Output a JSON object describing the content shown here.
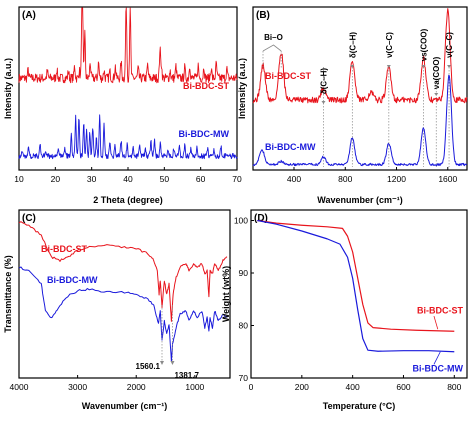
{
  "colors": {
    "st": "#e8141c",
    "mw": "#1a1adb",
    "axis": "#000000",
    "marker": "#8a8a8a"
  },
  "chart_data": [
    {
      "panel_label": "(A)",
      "type": "line",
      "xlabel": "2 Theta (degree)",
      "ylabel": "Intensity (a.u.)",
      "xlim": [
        10,
        70
      ],
      "xticks": [
        10,
        20,
        30,
        40,
        50,
        60,
        70
      ],
      "yticks_shown": false,
      "series": [
        {
          "name": "Bi-BDC-ST",
          "color": "st",
          "baseline": 0.62,
          "noise": 0.035,
          "peaks": [
            [
              12.5,
              0.06
            ],
            [
              17.8,
              0.05
            ],
            [
              20.4,
              0.07
            ],
            [
              23.6,
              0.05
            ],
            [
              25.3,
              0.09
            ],
            [
              26.6,
              0.06
            ],
            [
              27.4,
              1.05
            ],
            [
              28.1,
              0.35
            ],
            [
              29.6,
              0.12
            ],
            [
              31.9,
              0.12
            ],
            [
              33.4,
              0.06
            ],
            [
              35.0,
              0.05
            ],
            [
              36.5,
              0.09
            ],
            [
              38.1,
              0.12
            ],
            [
              39.5,
              0.62
            ],
            [
              40.6,
              0.54
            ],
            [
              42.8,
              0.07
            ],
            [
              45.4,
              0.1
            ],
            [
              48.8,
              0.22
            ],
            [
              49.2,
              0.1
            ],
            [
              51.6,
              0.06
            ],
            [
              53.2,
              0.09
            ],
            [
              55.6,
              0.08
            ],
            [
              57.0,
              0.1
            ],
            [
              59.3,
              0.1
            ],
            [
              60.9,
              0.09
            ],
            [
              62.9,
              0.08
            ],
            [
              64.3,
              0.11
            ],
            [
              67.2,
              0.07
            ]
          ]
        },
        {
          "name": "Bi-BDC-MW",
          "color": "mw",
          "baseline": 0.03,
          "noise": 0.02,
          "peaks": [
            [
              10.9,
              0.03
            ],
            [
              12.6,
              0.06
            ],
            [
              15.8,
              0.09
            ],
            [
              17.3,
              0.05
            ],
            [
              20.9,
              0.06
            ],
            [
              22.6,
              0.07
            ],
            [
              24.4,
              0.16
            ],
            [
              25.6,
              0.3
            ],
            [
              26.5,
              0.28
            ],
            [
              27.8,
              0.26
            ],
            [
              28.6,
              0.2
            ],
            [
              29.5,
              0.18
            ],
            [
              30.3,
              0.22
            ],
            [
              31.3,
              0.14
            ],
            [
              32.2,
              0.32
            ],
            [
              33.4,
              0.26
            ],
            [
              35.0,
              0.12
            ],
            [
              36.4,
              0.08
            ],
            [
              38.1,
              0.12
            ],
            [
              39.8,
              0.1
            ],
            [
              41.4,
              0.06
            ],
            [
              43.2,
              0.08
            ],
            [
              44.8,
              0.06
            ],
            [
              46.3,
              0.12
            ],
            [
              47.3,
              0.13
            ],
            [
              48.9,
              0.1
            ],
            [
              51.0,
              0.05
            ],
            [
              52.6,
              0.06
            ],
            [
              54.1,
              0.07
            ],
            [
              55.6,
              0.08
            ],
            [
              57.3,
              0.06
            ],
            [
              59.0,
              0.07
            ],
            [
              61.9,
              0.06
            ],
            [
              63.7,
              0.05
            ],
            [
              65.6,
              0.07
            ]
          ]
        }
      ],
      "series_labels": {
        "st": "Bi-BDC-ST",
        "mw": "Bi-BDC-MW"
      }
    },
    {
      "panel_label": "(B)",
      "type": "line",
      "xlabel": "Wavenumber (cm⁻¹)",
      "ylabel": "Intensity (a.u.)",
      "xlim": [
        80,
        1750
      ],
      "xticks": [
        400,
        800,
        1200,
        1600
      ],
      "yticks_shown": false,
      "series": [
        {
          "name": "Bi-BDC-ST",
          "color": "st",
          "baseline": 0.44,
          "noise": 0.02,
          "peaks": [
            [
              158,
              0.23
            ],
            [
              300,
              0.32
            ],
            [
              630,
              0.08
            ],
            [
              855,
              0.26
            ],
            [
              1000,
              0.05
            ],
            [
              1140,
              0.22
            ],
            [
              1410,
              0.28
            ],
            [
              1600,
              0.6
            ]
          ]
        },
        {
          "name": "Bi-BDC-MW",
          "color": "mw",
          "baseline": 0.01,
          "noise": 0.008,
          "peaks": [
            [
              150,
              0.1
            ],
            [
              300,
              0.02
            ],
            [
              630,
              0.05
            ],
            [
              855,
              0.18
            ],
            [
              1140,
              0.14
            ],
            [
              1410,
              0.24
            ],
            [
              1610,
              0.6
            ]
          ]
        }
      ],
      "annotations": [
        {
          "x": 240,
          "text": "Bi–O",
          "bracket": [
            158,
            300
          ]
        },
        {
          "x": 630,
          "text": "δ(C–H)"
        },
        {
          "x": 855,
          "text": "δ(C–H)"
        },
        {
          "x": 1140,
          "text": "ν(C–C)"
        },
        {
          "x": 1410,
          "text": "νs(COO)"
        },
        {
          "x": 1510,
          "text": "νa(COO)"
        },
        {
          "x": 1610,
          "text": "ν(C–C)"
        }
      ],
      "series_labels": {
        "st": "Bi-BDC-ST",
        "mw": "Bi-BDC-MW"
      }
    },
    {
      "panel_label": "(C)",
      "type": "line",
      "xlabel": "Wavenumber (cm⁻¹)",
      "ylabel": "Transmittance (%)",
      "xlim": [
        4000,
        400
      ],
      "xticks": [
        4000,
        3000,
        2000,
        1000
      ],
      "yticks_shown": false,
      "series": [
        {
          "name": "Bi-BDC-ST",
          "color": "st",
          "points": [
            [
              4000,
              0.93
            ],
            [
              3800,
              0.9
            ],
            [
              3620,
              0.85
            ],
            [
              3450,
              0.72
            ],
            [
              3300,
              0.7
            ],
            [
              3150,
              0.72
            ],
            [
              3000,
              0.76
            ],
            [
              2800,
              0.78
            ],
            [
              2500,
              0.79
            ],
            [
              2200,
              0.78
            ],
            [
              2000,
              0.77
            ],
            [
              1800,
              0.74
            ],
            [
              1700,
              0.7
            ],
            [
              1640,
              0.64
            ],
            [
              1610,
              0.5
            ],
            [
              1590,
              0.58
            ],
            [
              1560,
              0.42
            ],
            [
              1520,
              0.58
            ],
            [
              1480,
              0.5
            ],
            [
              1440,
              0.56
            ],
            [
              1400,
              0.34
            ],
            [
              1370,
              0.5
            ],
            [
              1320,
              0.6
            ],
            [
              1250,
              0.66
            ],
            [
              1150,
              0.68
            ],
            [
              1100,
              0.64
            ],
            [
              1020,
              0.68
            ],
            [
              960,
              0.66
            ],
            [
              880,
              0.68
            ],
            [
              830,
              0.62
            ],
            [
              790,
              0.64
            ],
            [
              760,
              0.48
            ],
            [
              740,
              0.64
            ],
            [
              700,
              0.62
            ],
            [
              660,
              0.68
            ],
            [
              600,
              0.64
            ],
            [
              520,
              0.7
            ],
            [
              450,
              0.72
            ]
          ]
        },
        {
          "name": "Bi-BDC-MW",
          "color": "mw",
          "points": [
            [
              4000,
              0.66
            ],
            [
              3800,
              0.63
            ],
            [
              3620,
              0.56
            ],
            [
              3550,
              0.4
            ],
            [
              3450,
              0.36
            ],
            [
              3350,
              0.4
            ],
            [
              3200,
              0.48
            ],
            [
              3000,
              0.52
            ],
            [
              2800,
              0.53
            ],
            [
              2500,
              0.51
            ],
            [
              2200,
              0.51
            ],
            [
              2000,
              0.5
            ],
            [
              1800,
              0.47
            ],
            [
              1700,
              0.43
            ],
            [
              1620,
              0.32
            ],
            [
              1590,
              0.4
            ],
            [
              1560,
              0.22
            ],
            [
              1520,
              0.34
            ],
            [
              1480,
              0.26
            ],
            [
              1440,
              0.32
            ],
            [
              1400,
              0.1
            ],
            [
              1380,
              0.2
            ],
            [
              1320,
              0.3
            ],
            [
              1250,
              0.38
            ],
            [
              1150,
              0.4
            ],
            [
              1100,
              0.34
            ],
            [
              1020,
              0.4
            ],
            [
              960,
              0.36
            ],
            [
              880,
              0.4
            ],
            [
              830,
              0.3
            ],
            [
              790,
              0.36
            ],
            [
              760,
              0.28
            ],
            [
              740,
              0.36
            ],
            [
              700,
              0.3
            ],
            [
              660,
              0.4
            ],
            [
              600,
              0.34
            ],
            [
              520,
              0.38
            ],
            [
              450,
              0.36
            ]
          ]
        }
      ],
      "annotations": [
        {
          "x": 1560.1,
          "text": "1560.1"
        },
        {
          "x": 1381.7,
          "text": "1381.7"
        }
      ],
      "series_labels": {
        "st": "Bi-BDC-ST",
        "mw": "Bi-BDC-MW"
      }
    },
    {
      "panel_label": "(D)",
      "type": "line",
      "xlabel": "Temperature (°C)",
      "ylabel": "Weight (wt%)",
      "xlim": [
        0,
        850
      ],
      "ylim": [
        70,
        102
      ],
      "xticks": [
        0,
        200,
        400,
        600,
        800
      ],
      "yticks": [
        70,
        80,
        90,
        100
      ],
      "series": [
        {
          "name": "Bi-BDC-ST",
          "color": "st",
          "points": [
            [
              25,
              100
            ],
            [
              100,
              99.5
            ],
            [
              200,
              99.1
            ],
            [
              300,
              98.8
            ],
            [
              360,
              98.5
            ],
            [
              380,
              97
            ],
            [
              400,
              94
            ],
            [
              420,
              89
            ],
            [
              440,
              84
            ],
            [
              460,
              80.5
            ],
            [
              480,
              79.6
            ],
            [
              550,
              79.3
            ],
            [
              650,
              79.1
            ],
            [
              800,
              78.9
            ]
          ]
        },
        {
          "name": "Bi-BDC-MW",
          "color": "mw",
          "points": [
            [
              25,
              100
            ],
            [
              100,
              99.3
            ],
            [
              200,
              98
            ],
            [
              300,
              96.5
            ],
            [
              350,
              95.5
            ],
            [
              380,
              93
            ],
            [
              400,
              89
            ],
            [
              420,
              83
            ],
            [
              440,
              77.5
            ],
            [
              460,
              75.3
            ],
            [
              500,
              75.1
            ],
            [
              600,
              75.2
            ],
            [
              700,
              75.2
            ],
            [
              800,
              75
            ]
          ]
        }
      ],
      "series_labels": {
        "st": "Bi-BDC-ST",
        "mw": "Bi-BDC-MW"
      }
    }
  ]
}
